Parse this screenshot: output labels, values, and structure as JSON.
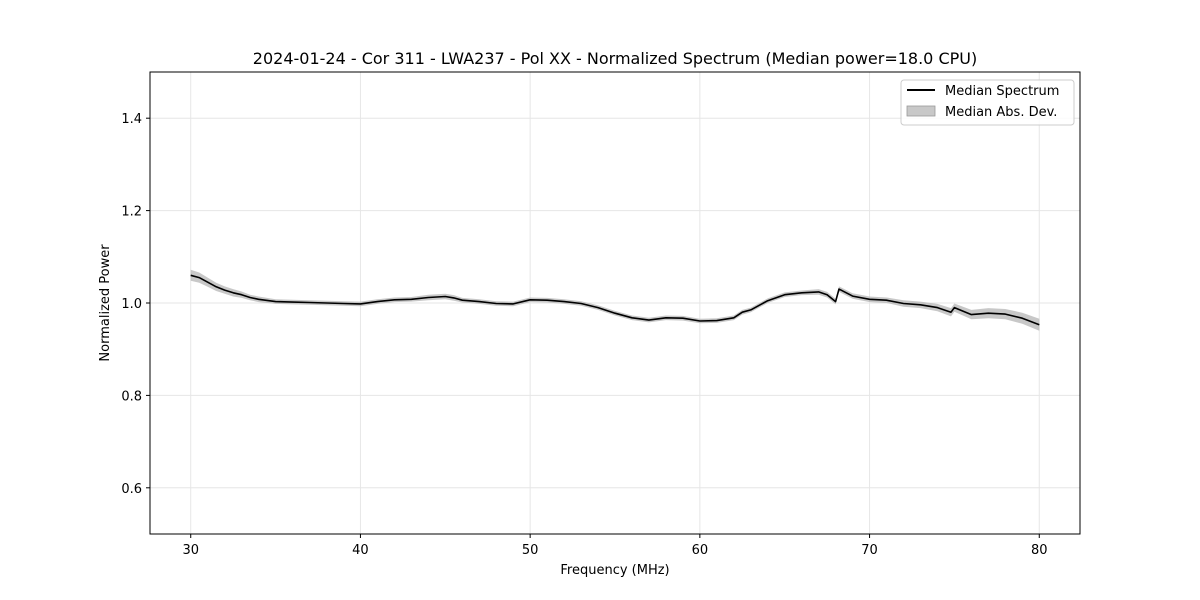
{
  "chart_data": {
    "type": "line",
    "title": "2024-01-24 - Cor 311 - LWA237 - Pol XX - Normalized Spectrum (Median power=18.0 CPU)",
    "xlabel": "Frequency (MHz)",
    "ylabel": "Normalized Power",
    "xlim": [
      27.6,
      82.4
    ],
    "ylim": [
      0.5,
      1.5
    ],
    "xticks": [
      30,
      40,
      50,
      60,
      70,
      80
    ],
    "yticks": [
      0.6,
      0.8,
      1.0,
      1.2,
      1.4
    ],
    "xtick_labels": [
      "30",
      "40",
      "50",
      "60",
      "70",
      "80"
    ],
    "ytick_labels": [
      "0.6",
      "0.8",
      "1.0",
      "1.2",
      "1.4"
    ],
    "grid": true,
    "legend_position": "top-right",
    "colors": {
      "line": "#000000",
      "band": "#b0b0b0",
      "grid": "#e6e6e6"
    },
    "series": [
      {
        "name": "Median Spectrum",
        "kind": "line",
        "x": [
          30,
          30.5,
          31,
          31.5,
          32,
          32.5,
          33,
          33.5,
          34,
          35,
          36,
          37,
          38,
          39,
          40,
          41,
          42,
          43,
          44,
          45,
          45.5,
          46,
          47,
          48,
          49,
          50,
          51,
          52,
          53,
          54,
          55,
          56,
          57,
          58,
          59,
          60,
          61,
          62,
          62.5,
          63,
          64,
          65,
          66,
          67,
          67.5,
          68,
          68.2,
          69,
          70,
          71,
          72,
          73,
          74,
          74.8,
          75,
          76,
          77,
          78,
          79,
          80
        ],
        "y": [
          1.06,
          1.055,
          1.045,
          1.035,
          1.028,
          1.022,
          1.018,
          1.012,
          1.008,
          1.003,
          1.002,
          1.001,
          1.0,
          0.999,
          0.998,
          1.003,
          1.007,
          1.008,
          1.012,
          1.014,
          1.011,
          1.006,
          1.003,
          0.999,
          0.998,
          1.007,
          1.006,
          1.003,
          0.999,
          0.99,
          0.978,
          0.968,
          0.963,
          0.968,
          0.967,
          0.961,
          0.962,
          0.968,
          0.98,
          0.985,
          1.005,
          1.018,
          1.022,
          1.024,
          1.018,
          1.003,
          1.03,
          1.015,
          1.008,
          1.006,
          0.999,
          0.996,
          0.99,
          0.98,
          0.99,
          0.975,
          0.978,
          0.976,
          0.967,
          0.953
        ]
      },
      {
        "name": "Median Abs. Dev.",
        "kind": "band",
        "x": [
          30,
          30.5,
          31,
          31.5,
          32,
          32.5,
          33,
          33.5,
          34,
          35,
          36,
          37,
          38,
          39,
          40,
          41,
          42,
          43,
          44,
          45,
          45.5,
          46,
          47,
          48,
          49,
          50,
          51,
          52,
          53,
          54,
          55,
          56,
          57,
          58,
          59,
          60,
          61,
          62,
          62.5,
          63,
          64,
          65,
          66,
          67,
          67.5,
          68,
          68.2,
          69,
          70,
          71,
          72,
          73,
          74,
          74.8,
          75,
          76,
          77,
          78,
          79,
          80
        ],
        "dev": [
          0.012,
          0.011,
          0.01,
          0.009,
          0.008,
          0.008,
          0.007,
          0.006,
          0.006,
          0.005,
          0.005,
          0.005,
          0.005,
          0.005,
          0.005,
          0.005,
          0.005,
          0.005,
          0.006,
          0.006,
          0.006,
          0.005,
          0.005,
          0.005,
          0.005,
          0.005,
          0.005,
          0.005,
          0.005,
          0.005,
          0.005,
          0.005,
          0.005,
          0.005,
          0.005,
          0.005,
          0.005,
          0.005,
          0.005,
          0.005,
          0.005,
          0.005,
          0.005,
          0.006,
          0.006,
          0.006,
          0.006,
          0.006,
          0.006,
          0.006,
          0.007,
          0.007,
          0.008,
          0.009,
          0.009,
          0.01,
          0.011,
          0.011,
          0.012,
          0.013
        ]
      }
    ]
  }
}
